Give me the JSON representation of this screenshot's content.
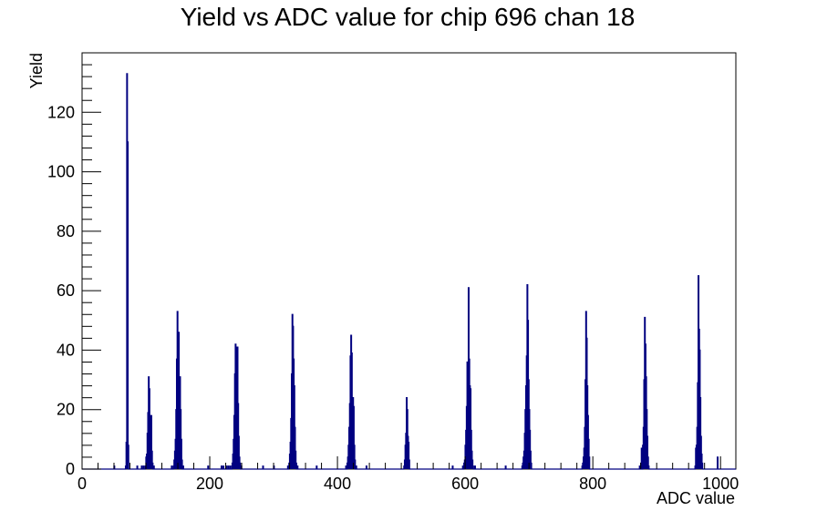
{
  "chart_data": {
    "type": "histogram",
    "title": "Yield vs ADC value for chip 696 chan 18",
    "xlabel": "ADC value",
    "ylabel": "Yield",
    "xlim": [
      0,
      1024
    ],
    "ylim": [
      0,
      140
    ],
    "x_ticks": [
      0,
      200,
      400,
      600,
      800,
      1000
    ],
    "y_ticks": [
      0,
      20,
      40,
      60,
      80,
      100,
      120
    ],
    "bin_width": 1,
    "line_color": "#000080",
    "series": [
      {
        "values": [
          [
            50,
            1
          ],
          [
            68,
            1
          ],
          [
            69,
            9
          ],
          [
            70,
            133
          ],
          [
            71,
            110
          ],
          [
            72,
            8
          ],
          [
            86,
            1
          ],
          [
            93,
            1
          ],
          [
            96,
            1
          ],
          [
            99,
            1
          ],
          [
            100,
            4
          ],
          [
            101,
            5
          ],
          [
            102,
            12
          ],
          [
            103,
            19
          ],
          [
            104,
            31
          ],
          [
            105,
            27
          ],
          [
            106,
            18
          ],
          [
            107,
            14
          ],
          [
            108,
            18
          ],
          [
            109,
            6
          ],
          [
            110,
            2
          ],
          [
            112,
            1
          ],
          [
            140,
            1
          ],
          [
            143,
            1
          ],
          [
            144,
            3
          ],
          [
            145,
            6
          ],
          [
            146,
            10
          ],
          [
            147,
            20
          ],
          [
            148,
            37
          ],
          [
            149,
            53
          ],
          [
            150,
            34
          ],
          [
            151,
            46
          ],
          [
            152,
            28
          ],
          [
            153,
            31
          ],
          [
            154,
            20
          ],
          [
            155,
            10
          ],
          [
            156,
            3
          ],
          [
            158,
            1
          ],
          [
            197,
            1
          ],
          [
            218,
            1
          ],
          [
            221,
            1
          ],
          [
            226,
            1
          ],
          [
            229,
            1
          ],
          [
            232,
            1
          ],
          [
            235,
            2
          ],
          [
            236,
            5
          ],
          [
            237,
            10
          ],
          [
            238,
            18
          ],
          [
            239,
            32
          ],
          [
            240,
            42
          ],
          [
            241,
            41
          ],
          [
            242,
            37
          ],
          [
            243,
            41
          ],
          [
            244,
            22
          ],
          [
            245,
            11
          ],
          [
            246,
            4
          ],
          [
            247,
            2
          ],
          [
            249,
            1
          ],
          [
            283,
            1
          ],
          [
            300,
            1
          ],
          [
            322,
            1
          ],
          [
            324,
            2
          ],
          [
            325,
            5
          ],
          [
            326,
            9
          ],
          [
            327,
            17
          ],
          [
            328,
            32
          ],
          [
            329,
            52
          ],
          [
            330,
            48
          ],
          [
            331,
            37
          ],
          [
            332,
            28
          ],
          [
            333,
            14
          ],
          [
            334,
            6
          ],
          [
            335,
            2
          ],
          [
            337,
            1
          ],
          [
            367,
            1
          ],
          [
            413,
            1
          ],
          [
            415,
            2
          ],
          [
            416,
            4
          ],
          [
            417,
            8
          ],
          [
            418,
            14
          ],
          [
            419,
            22
          ],
          [
            420,
            38
          ],
          [
            421,
            45
          ],
          [
            422,
            39
          ],
          [
            423,
            24
          ],
          [
            424,
            24
          ],
          [
            425,
            21
          ],
          [
            426,
            8
          ],
          [
            427,
            3
          ],
          [
            429,
            1
          ],
          [
            445,
            1
          ],
          [
            504,
            1
          ],
          [
            505,
            3
          ],
          [
            506,
            8
          ],
          [
            507,
            12
          ],
          [
            508,
            24
          ],
          [
            509,
            20
          ],
          [
            510,
            11
          ],
          [
            511,
            9
          ],
          [
            512,
            3
          ],
          [
            580,
            1
          ],
          [
            596,
            1
          ],
          [
            598,
            2
          ],
          [
            599,
            3
          ],
          [
            600,
            8
          ],
          [
            601,
            13
          ],
          [
            602,
            21
          ],
          [
            603,
            36
          ],
          [
            604,
            35
          ],
          [
            605,
            61
          ],
          [
            606,
            37
          ],
          [
            607,
            28
          ],
          [
            608,
            27
          ],
          [
            609,
            13
          ],
          [
            610,
            6
          ],
          [
            611,
            3
          ],
          [
            612,
            1
          ],
          [
            615,
            1
          ],
          [
            663,
            1
          ],
          [
            689,
            1
          ],
          [
            690,
            2
          ],
          [
            691,
            4
          ],
          [
            692,
            6
          ],
          [
            693,
            12
          ],
          [
            694,
            20
          ],
          [
            695,
            28
          ],
          [
            696,
            38
          ],
          [
            697,
            62
          ],
          [
            698,
            50
          ],
          [
            699,
            30
          ],
          [
            700,
            20
          ],
          [
            701,
            13
          ],
          [
            702,
            6
          ],
          [
            703,
            2
          ],
          [
            783,
            1
          ],
          [
            784,
            2
          ],
          [
            785,
            4
          ],
          [
            786,
            7
          ],
          [
            787,
            14
          ],
          [
            788,
            30
          ],
          [
            789,
            53
          ],
          [
            790,
            44
          ],
          [
            791,
            28
          ],
          [
            792,
            18
          ],
          [
            793,
            10
          ],
          [
            794,
            4
          ],
          [
            873,
            1
          ],
          [
            875,
            2
          ],
          [
            876,
            7
          ],
          [
            878,
            8
          ],
          [
            879,
            14
          ],
          [
            880,
            30
          ],
          [
            881,
            51
          ],
          [
            882,
            42
          ],
          [
            883,
            31
          ],
          [
            884,
            20
          ],
          [
            885,
            11
          ],
          [
            886,
            4
          ],
          [
            887,
            1
          ],
          [
            960,
            1
          ],
          [
            961,
            7
          ],
          [
            962,
            8
          ],
          [
            963,
            14
          ],
          [
            964,
            29
          ],
          [
            965,
            65
          ],
          [
            966,
            47
          ],
          [
            967,
            40
          ],
          [
            968,
            24
          ],
          [
            969,
            11
          ],
          [
            970,
            5
          ],
          [
            971,
            2
          ],
          [
            995,
            4
          ]
        ]
      }
    ]
  }
}
